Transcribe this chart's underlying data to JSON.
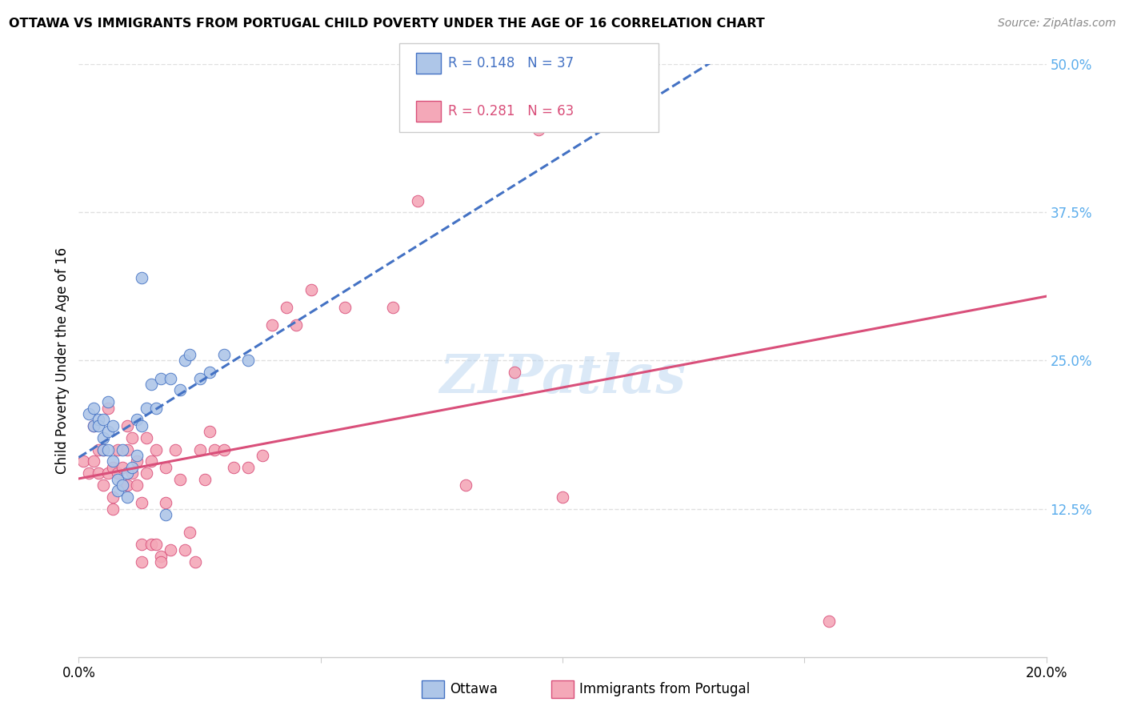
{
  "title": "OTTAWA VS IMMIGRANTS FROM PORTUGAL CHILD POVERTY UNDER THE AGE OF 16 CORRELATION CHART",
  "source": "Source: ZipAtlas.com",
  "ylabel": "Child Poverty Under the Age of 16",
  "xlim": [
    0,
    0.2
  ],
  "ylim": [
    0,
    0.5
  ],
  "xtick_values": [
    0.0,
    0.05,
    0.1,
    0.15,
    0.2
  ],
  "xtick_labels": [
    "0.0%",
    "",
    "",
    "",
    "20.0%"
  ],
  "ytick_values": [
    0.125,
    0.25,
    0.375,
    0.5
  ],
  "ytick_labels": [
    "12.5%",
    "25.0%",
    "37.5%",
    "50.0%"
  ],
  "ottawa_color": "#aec6e8",
  "portugal_color": "#f4a8b8",
  "ottawa_line_color": "#4472c4",
  "portugal_line_color": "#d94f7a",
  "legend_r_ottawa": "R = 0.148",
  "legend_n_ottawa": "N = 37",
  "legend_r_portugal": "R = 0.281",
  "legend_n_portugal": "N = 63",
  "legend_label_ottawa": "Ottawa",
  "legend_label_portugal": "Immigrants from Portugal",
  "watermark": "ZIPatlas",
  "ottawa_x": [
    0.002,
    0.003,
    0.003,
    0.004,
    0.004,
    0.005,
    0.005,
    0.005,
    0.006,
    0.006,
    0.006,
    0.007,
    0.007,
    0.008,
    0.008,
    0.009,
    0.009,
    0.01,
    0.01,
    0.011,
    0.012,
    0.012,
    0.013,
    0.013,
    0.014,
    0.015,
    0.016,
    0.017,
    0.018,
    0.019,
    0.021,
    0.022,
    0.023,
    0.025,
    0.027,
    0.03,
    0.035
  ],
  "ottawa_y": [
    0.205,
    0.195,
    0.21,
    0.2,
    0.195,
    0.2,
    0.185,
    0.175,
    0.19,
    0.215,
    0.175,
    0.195,
    0.165,
    0.14,
    0.15,
    0.145,
    0.175,
    0.135,
    0.155,
    0.16,
    0.2,
    0.17,
    0.195,
    0.32,
    0.21,
    0.23,
    0.21,
    0.235,
    0.12,
    0.235,
    0.225,
    0.25,
    0.255,
    0.235,
    0.24,
    0.255,
    0.25
  ],
  "portugal_x": [
    0.001,
    0.002,
    0.003,
    0.003,
    0.004,
    0.004,
    0.005,
    0.005,
    0.006,
    0.006,
    0.007,
    0.007,
    0.007,
    0.008,
    0.008,
    0.009,
    0.009,
    0.01,
    0.01,
    0.01,
    0.011,
    0.011,
    0.012,
    0.012,
    0.013,
    0.013,
    0.013,
    0.014,
    0.014,
    0.015,
    0.015,
    0.016,
    0.016,
    0.017,
    0.017,
    0.018,
    0.018,
    0.019,
    0.02,
    0.021,
    0.022,
    0.023,
    0.024,
    0.025,
    0.026,
    0.027,
    0.028,
    0.03,
    0.032,
    0.035,
    0.038,
    0.04,
    0.043,
    0.045,
    0.048,
    0.055,
    0.065,
    0.07,
    0.08,
    0.09,
    0.095,
    0.1,
    0.155
  ],
  "portugal_y": [
    0.165,
    0.155,
    0.165,
    0.195,
    0.155,
    0.175,
    0.175,
    0.145,
    0.155,
    0.21,
    0.16,
    0.135,
    0.125,
    0.175,
    0.155,
    0.16,
    0.145,
    0.195,
    0.175,
    0.145,
    0.185,
    0.155,
    0.145,
    0.165,
    0.095,
    0.13,
    0.08,
    0.155,
    0.185,
    0.165,
    0.095,
    0.095,
    0.175,
    0.085,
    0.08,
    0.13,
    0.16,
    0.09,
    0.175,
    0.15,
    0.09,
    0.105,
    0.08,
    0.175,
    0.15,
    0.19,
    0.175,
    0.175,
    0.16,
    0.16,
    0.17,
    0.28,
    0.295,
    0.28,
    0.31,
    0.295,
    0.295,
    0.385,
    0.145,
    0.24,
    0.445,
    0.135,
    0.03
  ],
  "background_color": "#ffffff",
  "grid_color": "#e0e0e0",
  "right_ytick_color": "#5badec"
}
